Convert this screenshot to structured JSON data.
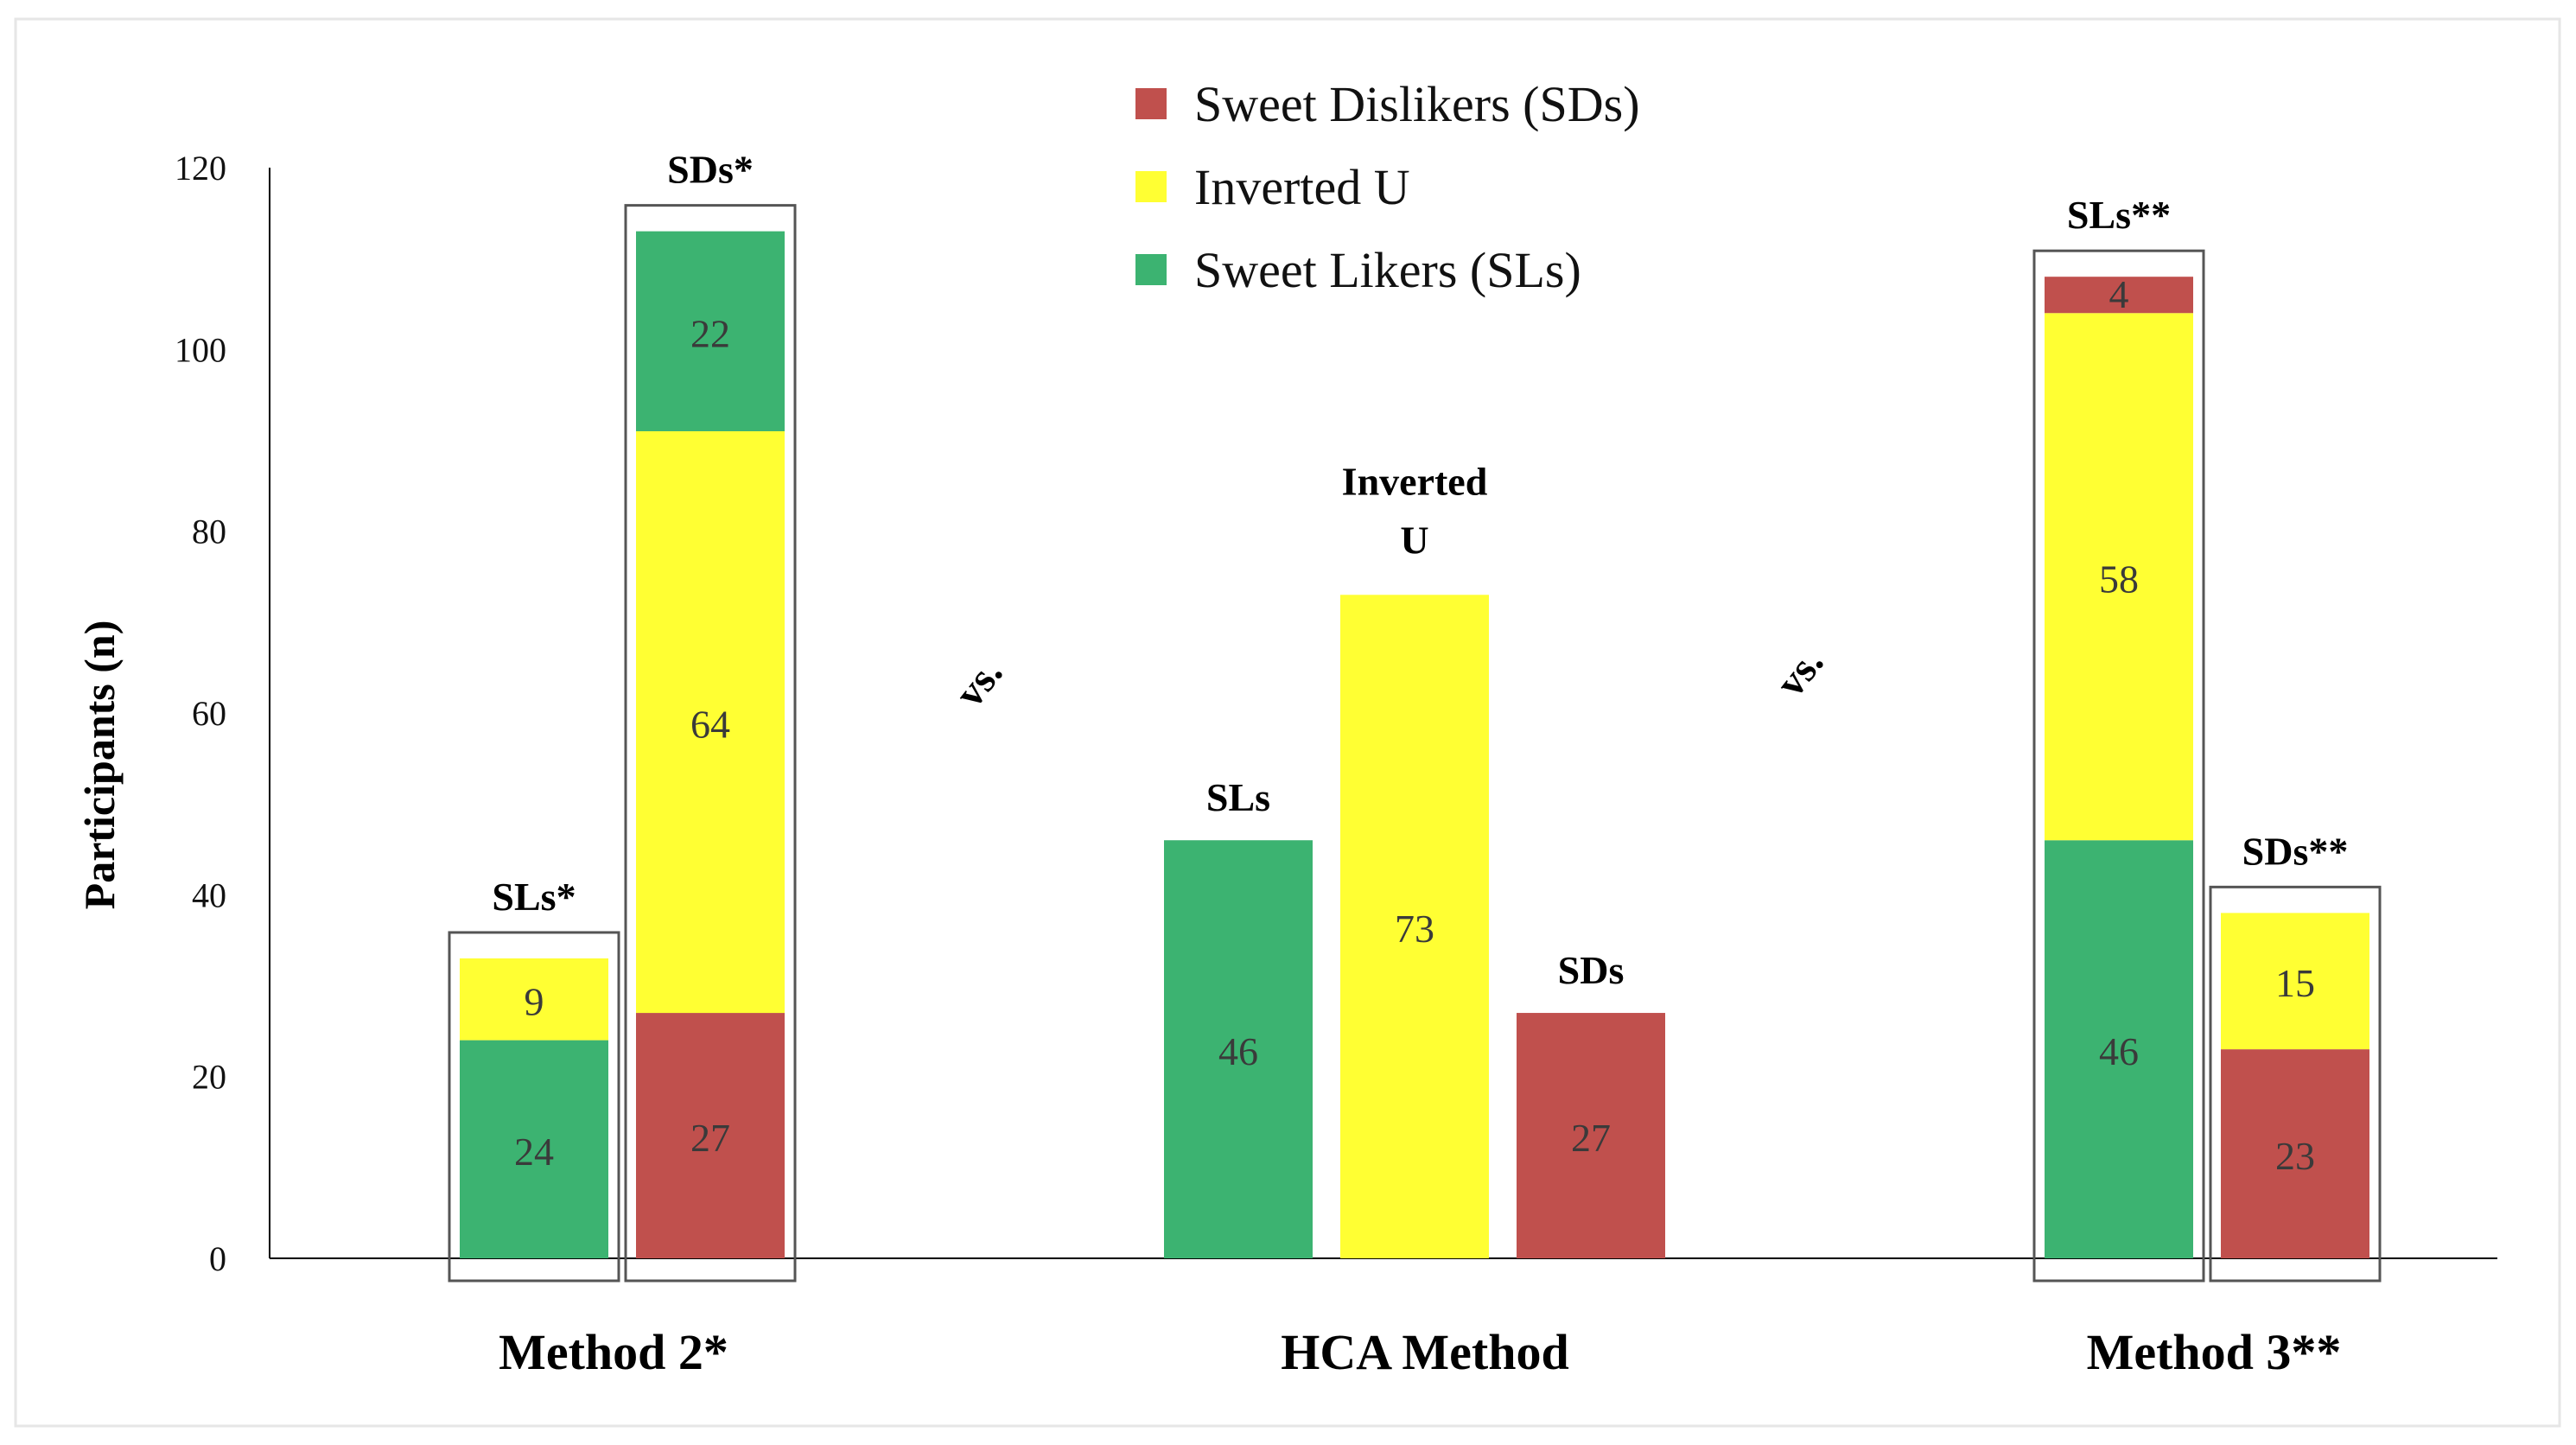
{
  "chart_data": {
    "type": "bar",
    "stacked": true,
    "ylabel": "Participants (n)",
    "ylim": [
      0,
      120
    ],
    "yticks": [
      0,
      20,
      40,
      60,
      80,
      100,
      120
    ],
    "colors": {
      "Sweet Dislikers (SDs)": "#c0504d",
      "Inverted U": "#ffff33",
      "Sweet Likers (SLs)": "#3cb371"
    },
    "legend": [
      {
        "label": "Sweet Dislikers (SDs)",
        "color": "#c0504d"
      },
      {
        "label": "Inverted U",
        "color": "#ffff33"
      },
      {
        "label": "Sweet Likers (SLs)",
        "color": "#3cb371"
      }
    ],
    "groups": [
      {
        "name": "Method 2*",
        "bars": [
          {
            "label": "SLs*",
            "boxed": true,
            "segments": [
              {
                "series": "Sweet Likers (SLs)",
                "value": 24,
                "label": "24"
              },
              {
                "series": "Inverted U",
                "value": 9,
                "label": "9"
              }
            ]
          },
          {
            "label": "SDs*",
            "boxed": true,
            "segments": [
              {
                "series": "Sweet Dislikers (SDs)",
                "value": 27,
                "label": "27"
              },
              {
                "series": "Inverted U",
                "value": 64,
                "label": "64"
              },
              {
                "series": "Sweet Likers (SLs)",
                "value": 22,
                "label": "22"
              }
            ]
          }
        ]
      },
      {
        "name": "HCA Method",
        "bars": [
          {
            "label": "SLs",
            "boxed": false,
            "segments": [
              {
                "series": "Sweet Likers (SLs)",
                "value": 46,
                "label": "46"
              }
            ]
          },
          {
            "label": "Inverted U",
            "boxed": false,
            "segments": [
              {
                "series": "Inverted U",
                "value": 73,
                "label": "73"
              }
            ]
          },
          {
            "label": "SDs",
            "boxed": false,
            "segments": [
              {
                "series": "Sweet Dislikers (SDs)",
                "value": 27,
                "label": "27"
              }
            ]
          }
        ]
      },
      {
        "name": "Method 3**",
        "bars": [
          {
            "label": "SLs**",
            "boxed": true,
            "segments": [
              {
                "series": "Sweet Likers (SLs)",
                "value": 46,
                "label": "46"
              },
              {
                "series": "Inverted U",
                "value": 58,
                "label": "58"
              },
              {
                "series": "Sweet Dislikers (SDs)",
                "value": 4,
                "label": "4"
              }
            ]
          },
          {
            "label": "SDs**",
            "boxed": true,
            "segments": [
              {
                "series": "Sweet Dislikers (SDs)",
                "value": 23,
                "label": "23"
              },
              {
                "series": "Inverted U",
                "value": 15,
                "label": "15"
              }
            ]
          }
        ]
      }
    ],
    "annotations": [
      "vs.",
      "vs."
    ]
  }
}
